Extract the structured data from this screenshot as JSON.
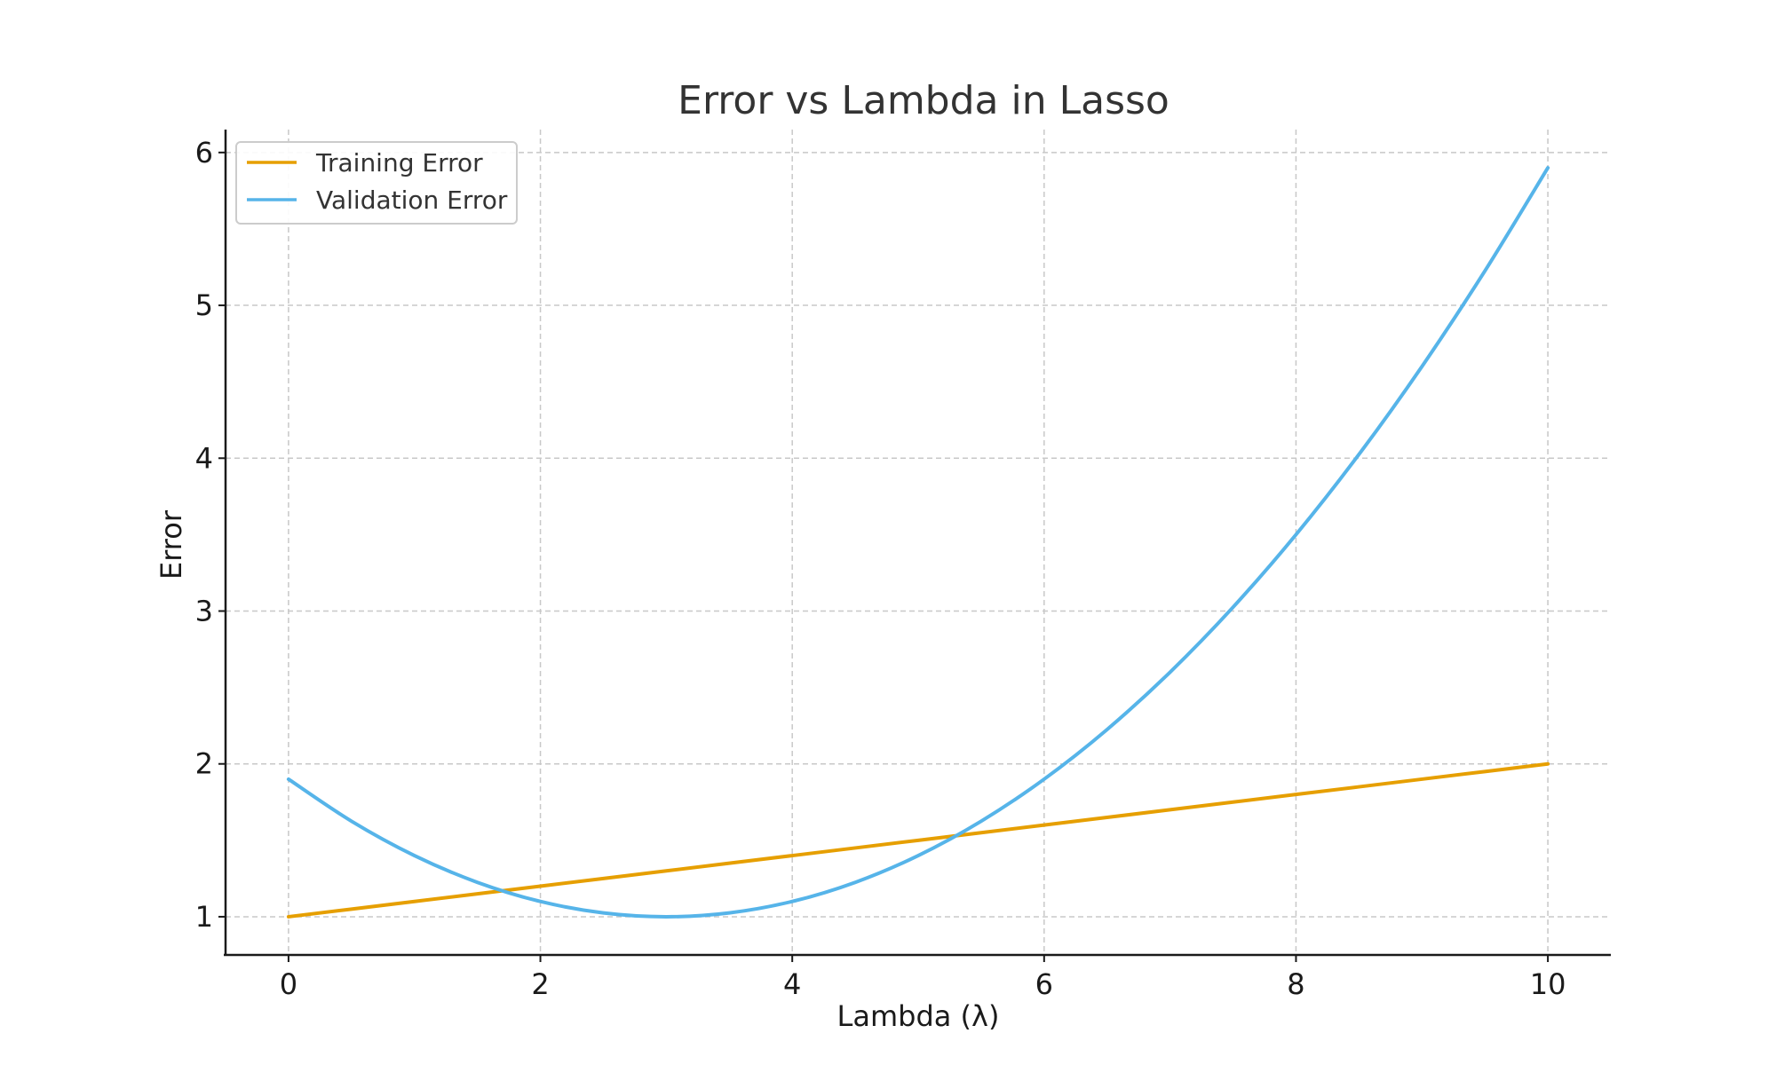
{
  "chart_data": {
    "type": "line",
    "title": "Error vs Lambda in Lasso",
    "xlabel": "Lambda (λ)",
    "ylabel": "Error",
    "xlim": [
      -0.5,
      10.5
    ],
    "ylim": [
      0.75,
      6.15
    ],
    "xticks": [
      0,
      2,
      4,
      6,
      8,
      10
    ],
    "yticks": [
      1,
      2,
      3,
      4,
      5,
      6
    ],
    "grid": true,
    "legend_position": "top-left",
    "x": [
      0,
      0.5,
      1,
      1.5,
      2,
      2.5,
      3,
      3.5,
      4,
      4.5,
      5,
      5.5,
      6,
      6.5,
      7,
      7.5,
      8,
      8.5,
      9,
      9.5,
      10
    ],
    "series": [
      {
        "name": "Training Error",
        "color": "#E69F00",
        "values": [
          1.0,
          1.05,
          1.1,
          1.15,
          1.2,
          1.25,
          1.3,
          1.35,
          1.4,
          1.45,
          1.5,
          1.55,
          1.6,
          1.65,
          1.7,
          1.75,
          1.8,
          1.85,
          1.9,
          1.95,
          2.0
        ]
      },
      {
        "name": "Validation Error",
        "color": "#56B4E9",
        "values": [
          1.9,
          1.625,
          1.4,
          1.225,
          1.1,
          1.025,
          1.0,
          1.025,
          1.1,
          1.225,
          1.4,
          1.625,
          1.9,
          2.225,
          2.6,
          3.025,
          3.5,
          4.025,
          4.6,
          5.225,
          5.9
        ]
      }
    ]
  }
}
